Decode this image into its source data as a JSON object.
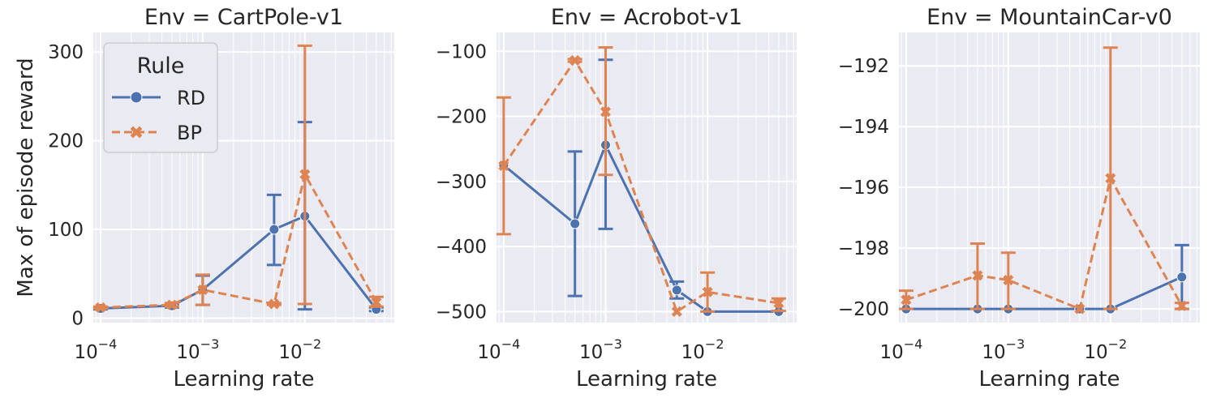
{
  "shared": {
    "xlabel": "Learning rate",
    "ylabel": "Max of episode reward",
    "x_scale": "log",
    "x_ticks": [
      0.0001,
      0.001,
      0.01
    ],
    "x_tick_labels": [
      {
        "base": "10",
        "exp": "−4"
      },
      {
        "base": "10",
        "exp": "−3"
      },
      {
        "base": "10",
        "exp": "−2"
      }
    ],
    "colors": {
      "RD": "#4c72b0",
      "BP": "#dd8452",
      "background": "#eaeaf2",
      "grid": "#ffffff"
    }
  },
  "legend": {
    "title": "Rule",
    "placement": "upper-left of first panel",
    "entries": [
      {
        "label": "RD",
        "marker": "circle",
        "line": "solid"
      },
      {
        "label": "BP",
        "marker": "x",
        "line": "dashed"
      }
    ]
  },
  "chart_data": [
    {
      "type": "line",
      "title": "Env = CartPole-v1",
      "xlabel": "Learning rate",
      "ylabel": "Max of episode reward",
      "xlim": [
        8.5e-05,
        0.075
      ],
      "ylim": [
        -5,
        322
      ],
      "y_ticks": [
        0,
        100,
        200,
        300
      ],
      "y_tick_labels": [
        "0",
        "100",
        "200",
        "300"
      ],
      "series": [
        {
          "name": "RD",
          "x": [
            0.0001,
            0.0005,
            0.001,
            0.005,
            0.01,
            0.05
          ],
          "y": [
            11,
            14,
            32,
            100,
            115,
            10
          ],
          "err_low": [
            10,
            12,
            15,
            60,
            10,
            8
          ],
          "err_high": [
            12,
            16,
            48,
            139,
            221,
            12
          ]
        },
        {
          "name": "BP",
          "x": [
            0.0001,
            0.0005,
            0.001,
            0.005,
            0.01,
            0.05
          ],
          "y": [
            12,
            15,
            32,
            16,
            162,
            18
          ],
          "err_low": [
            11,
            13,
            15,
            15,
            16,
            13
          ],
          "err_high": [
            13,
            17,
            49,
            17,
            307,
            24
          ]
        }
      ]
    },
    {
      "type": "line",
      "title": "Env = Acrobot-v1",
      "xlabel": "Learning rate",
      "ylabel": "",
      "xlim": [
        8.5e-05,
        0.075
      ],
      "ylim": [
        -517,
        -71
      ],
      "y_ticks": [
        -500,
        -400,
        -300,
        -200,
        -100
      ],
      "y_tick_labels": [
        "−500",
        "−400",
        "−300",
        "−200",
        "−100"
      ],
      "series": [
        {
          "name": "RD",
          "x": [
            0.0001,
            0.0005,
            0.001,
            0.005,
            0.01,
            0.05
          ],
          "y": [
            -275,
            -365,
            -244,
            -467,
            -500,
            -500
          ],
          "err_low": [
            -275,
            -476,
            -373,
            -480,
            -500,
            -500
          ],
          "err_high": [
            -275,
            -254,
            -113,
            -454,
            -500,
            -500
          ]
        },
        {
          "name": "BP",
          "x": [
            0.0001,
            0.0005,
            0.001,
            0.005,
            0.01,
            0.05
          ],
          "y": [
            -276,
            -114,
            -193,
            -500,
            -470,
            -487
          ],
          "err_low": [
            -381,
            -116,
            -290,
            -500,
            -500,
            -499
          ],
          "err_high": [
            -171,
            -112,
            -94,
            -500,
            -440,
            -480
          ]
        }
      ]
    },
    {
      "type": "line",
      "title": "Env = MountainCar-v0",
      "xlabel": "Learning rate",
      "ylabel": "",
      "xlim": [
        8.5e-05,
        0.075
      ],
      "ylim": [
        -200.45,
        -190.9
      ],
      "y_ticks": [
        -200,
        -198,
        -196,
        -194,
        -192
      ],
      "y_tick_labels": [
        "−200",
        "−198",
        "−196",
        "−194",
        "−192"
      ],
      "series": [
        {
          "name": "RD",
          "x": [
            0.0001,
            0.0005,
            0.001,
            0.005,
            0.01,
            0.05
          ],
          "y": [
            -200,
            -200,
            -200,
            -200,
            -200,
            -198.95
          ],
          "err_low": [
            -200,
            -200,
            -200,
            -200,
            -200,
            -200
          ],
          "err_high": [
            -200,
            -200,
            -200,
            -200,
            -200,
            -197.9
          ]
        },
        {
          "name": "BP",
          "x": [
            0.0001,
            0.0005,
            0.001,
            0.005,
            0.01,
            0.05
          ],
          "y": [
            -199.7,
            -198.9,
            -199.05,
            -200,
            -195.7,
            -199.9
          ],
          "err_low": [
            -200,
            -200,
            -200,
            -200,
            -200,
            -200
          ],
          "err_high": [
            -199.4,
            -197.85,
            -198.15,
            -200,
            -191.4,
            -199.8
          ]
        }
      ]
    }
  ]
}
